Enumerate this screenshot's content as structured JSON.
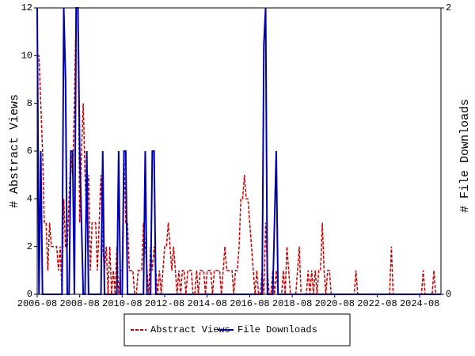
{
  "chart_data": {
    "type": "line",
    "y_label": "# Abstract Views",
    "y2_label": "# File Downloads",
    "x": [
      "2006-08",
      "2006-09",
      "2006-10",
      "2006-11",
      "2006-12",
      "2007-01",
      "2007-02",
      "2007-03",
      "2007-04",
      "2007-05",
      "2007-06",
      "2007-07",
      "2007-08",
      "2007-09",
      "2007-10",
      "2007-11",
      "2007-12",
      "2008-01",
      "2008-02",
      "2008-03",
      "2008-04",
      "2008-05",
      "2008-06",
      "2008-07",
      "2008-08",
      "2008-09",
      "2008-10",
      "2008-11",
      "2008-12",
      "2009-01",
      "2009-02",
      "2009-03",
      "2009-04",
      "2009-05",
      "2009-06",
      "2009-07",
      "2009-08",
      "2009-09",
      "2009-10",
      "2009-11",
      "2009-12",
      "2010-01",
      "2010-02",
      "2010-03",
      "2010-04",
      "2010-05",
      "2010-06",
      "2010-07",
      "2010-08",
      "2010-09",
      "2010-10",
      "2010-11",
      "2010-12",
      "2011-01",
      "2011-02",
      "2011-03",
      "2011-04",
      "2011-05",
      "2011-06",
      "2011-07",
      "2011-08",
      "2011-09",
      "2011-10",
      "2011-11",
      "2011-12",
      "2012-01",
      "2012-02",
      "2012-03",
      "2012-04",
      "2012-05",
      "2012-06",
      "2012-07",
      "2012-08",
      "2012-09",
      "2012-10",
      "2012-11",
      "2012-12",
      "2013-01",
      "2013-02",
      "2013-03",
      "2013-04",
      "2013-05",
      "2013-06",
      "2013-07",
      "2013-08",
      "2013-09",
      "2013-10",
      "2013-11",
      "2013-12",
      "2014-01",
      "2014-02",
      "2014-03",
      "2014-04",
      "2014-05",
      "2014-06",
      "2014-07",
      "2014-08",
      "2014-09",
      "2014-10",
      "2014-11",
      "2014-12",
      "2015-01",
      "2015-02",
      "2015-03",
      "2015-04",
      "2015-05",
      "2015-06",
      "2015-07",
      "2015-08",
      "2015-09",
      "2015-10",
      "2015-11",
      "2015-12",
      "2016-01",
      "2016-02",
      "2016-03",
      "2016-04",
      "2016-05",
      "2016-06",
      "2016-07",
      "2016-08",
      "2016-09",
      "2016-10",
      "2016-11",
      "2016-12",
      "2017-01",
      "2017-02",
      "2017-03",
      "2017-04",
      "2017-05",
      "2017-06",
      "2017-07",
      "2017-08",
      "2017-09",
      "2017-10",
      "2017-11",
      "2017-12",
      "2018-01",
      "2018-02",
      "2018-03",
      "2018-04",
      "2018-05",
      "2018-06",
      "2018-07",
      "2018-08",
      "2018-09",
      "2018-10",
      "2018-11",
      "2018-12",
      "2019-01",
      "2019-02",
      "2019-03",
      "2019-04",
      "2019-05",
      "2019-06",
      "2019-07",
      "2019-08",
      "2019-09",
      "2019-10",
      "2019-11",
      "2019-12",
      "2020-01",
      "2020-02",
      "2020-03",
      "2020-04",
      "2020-05",
      "2020-06",
      "2020-07",
      "2020-08",
      "2020-09",
      "2020-10",
      "2020-11",
      "2020-12",
      "2021-01",
      "2021-02",
      "2021-03",
      "2021-04",
      "2021-05",
      "2021-06",
      "2021-07",
      "2021-08",
      "2021-09",
      "2021-10",
      "2021-11",
      "2021-12",
      "2022-01",
      "2022-02",
      "2022-03",
      "2022-04",
      "2022-05",
      "2022-06",
      "2022-07",
      "2022-08",
      "2022-09",
      "2022-10",
      "2022-11",
      "2022-12",
      "2023-01",
      "2023-02",
      "2023-03",
      "2023-04",
      "2023-05",
      "2023-06",
      "2023-07",
      "2023-08",
      "2023-09",
      "2023-10",
      "2023-11",
      "2023-12",
      "2024-01",
      "2024-02",
      "2024-03",
      "2024-04",
      "2024-05",
      "2024-06",
      "2024-07",
      "2024-08",
      "2024-09",
      "2024-10",
      "2024-11",
      "2024-12",
      "2025-01",
      "2025-02",
      "2025-03",
      "2025-04",
      "2025-05",
      "2025-06",
      "2025-07",
      "2025-08"
    ],
    "series": [
      {
        "name": "Abstract Views",
        "color": "#cc0000",
        "dashed": true,
        "values": [
          10,
          10,
          8,
          6,
          3,
          3,
          1,
          3,
          2,
          2,
          2,
          2,
          1,
          2,
          0,
          4,
          2,
          2,
          4,
          6,
          5,
          8,
          12,
          12,
          3,
          6,
          8,
          5,
          3,
          5,
          1,
          3,
          3,
          3,
          1,
          3,
          5,
          2,
          1,
          2,
          0,
          2,
          0,
          1,
          0,
          2,
          0,
          1,
          1,
          6,
          3,
          3,
          1,
          1,
          1,
          0,
          0,
          1,
          1,
          1,
          3,
          2,
          1,
          0,
          2,
          1,
          2,
          1,
          0,
          1,
          0,
          1,
          2,
          2,
          3,
          2,
          1,
          2,
          1,
          0,
          1,
          0,
          1,
          1,
          0,
          1,
          1,
          1,
          0,
          0,
          1,
          0,
          1,
          1,
          1,
          0,
          1,
          1,
          1,
          0,
          1,
          1,
          1,
          1,
          0,
          1,
          2,
          1,
          1,
          1,
          1,
          0,
          1,
          1,
          2,
          4,
          4,
          5,
          4,
          4,
          3,
          2,
          1,
          0,
          1,
          0,
          0,
          1,
          0,
          3,
          1,
          0,
          0,
          1,
          0,
          1,
          0,
          0,
          0,
          1,
          0,
          2,
          1,
          0,
          0,
          0,
          0,
          1,
          2,
          0,
          0,
          0,
          0,
          1,
          0,
          1,
          0,
          1,
          0,
          1,
          1,
          3,
          1,
          0,
          1,
          1,
          0,
          0,
          0,
          0,
          0,
          0,
          0,
          0,
          0,
          0,
          0,
          0,
          0,
          0,
          1,
          0,
          0,
          0,
          0,
          0,
          0,
          0,
          0,
          0,
          0,
          0,
          0,
          0,
          0,
          0,
          0,
          0,
          0,
          0,
          2,
          0,
          0,
          0,
          0,
          0,
          0,
          0,
          0,
          0,
          0,
          0,
          0,
          0,
          0,
          0,
          0,
          0,
          1,
          0,
          0,
          0,
          0,
          0,
          1,
          0,
          0,
          0,
          0
        ]
      },
      {
        "name": "File Downloads",
        "color": "#0000aa",
        "dashed": false,
        "axis": "y2",
        "values": [
          2,
          0,
          1,
          0,
          0,
          0,
          0,
          0,
          0,
          0,
          0,
          0,
          0,
          0,
          0,
          2,
          1.5,
          0,
          0,
          1,
          1,
          0,
          2,
          2,
          1,
          0.5,
          0,
          0,
          1,
          0,
          0,
          0,
          0,
          0,
          0,
          0,
          0,
          1,
          0,
          0,
          0,
          0,
          0,
          0,
          0,
          0,
          1,
          0,
          0,
          1,
          1,
          0,
          0,
          0,
          0,
          0,
          0,
          0,
          0,
          0,
          0,
          1,
          0,
          0,
          0,
          1,
          1,
          0,
          0,
          0,
          0,
          0,
          0,
          0,
          0,
          0,
          0,
          0,
          0,
          0,
          0,
          0,
          0,
          0,
          0,
          0,
          0,
          0,
          0,
          0,
          0,
          0,
          0,
          0,
          0,
          0,
          0,
          0,
          0,
          0,
          0,
          0,
          0,
          0,
          0,
          0,
          0,
          0,
          0,
          0,
          0,
          0,
          0,
          0,
          0,
          0,
          0,
          0,
          0,
          0,
          0,
          0,
          0,
          0,
          0,
          0,
          0,
          0,
          1.75,
          2,
          0,
          0,
          0,
          0,
          0.5,
          1,
          0,
          0,
          0,
          0,
          0,
          0,
          0,
          0,
          0,
          0,
          0,
          0,
          0,
          0,
          0,
          0,
          0,
          0,
          0,
          0,
          0,
          0,
          0,
          0,
          0,
          0,
          0,
          0,
          0,
          0,
          0,
          0,
          0,
          0,
          0,
          0,
          0,
          0,
          0,
          0,
          0,
          0,
          0,
          0,
          0,
          0,
          0,
          0,
          0,
          0,
          0,
          0,
          0,
          0,
          0,
          0,
          0,
          0,
          0,
          0,
          0,
          0,
          0,
          0,
          0,
          0,
          0,
          0,
          0,
          0,
          0,
          0,
          0,
          0,
          0,
          0,
          0,
          0,
          0,
          0,
          0,
          0,
          0,
          0,
          0,
          0,
          0,
          0,
          0,
          0,
          0,
          0,
          0
        ]
      }
    ],
    "xticks": [
      "2006-08",
      "2008-08",
      "2010-08",
      "2012-08",
      "2014-08",
      "2016-08",
      "2018-08",
      "2020-08",
      "2022-08",
      "2024-08"
    ],
    "ylim": [
      0,
      12
    ],
    "yticks": [
      0,
      2,
      4,
      6,
      8,
      10,
      12
    ],
    "y2lim": [
      0,
      2
    ],
    "y2ticks": [
      0,
      2
    ],
    "legend": "bottom"
  }
}
